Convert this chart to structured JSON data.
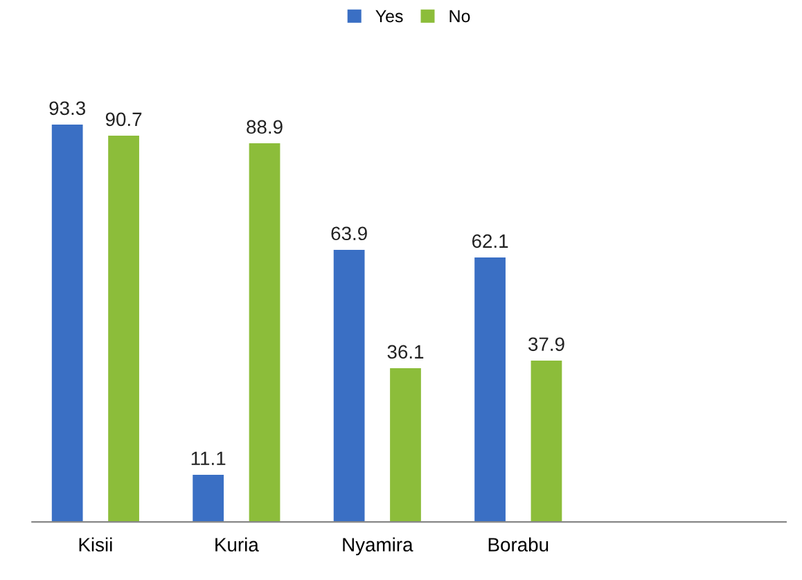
{
  "chart_data": {
    "type": "bar",
    "categories": [
      "Kisii",
      "Kuria",
      "Nyamira",
      "Borabu"
    ],
    "series": [
      {
        "name": "Yes",
        "color": "#3a6fc4",
        "values": [
          93.3,
          11.1,
          63.9,
          62.1
        ]
      },
      {
        "name": "No",
        "color": "#8cbd3a",
        "values": [
          90.7,
          88.9,
          36.1,
          37.9
        ]
      }
    ],
    "data_labels": true,
    "legend": "top",
    "grid": false
  }
}
